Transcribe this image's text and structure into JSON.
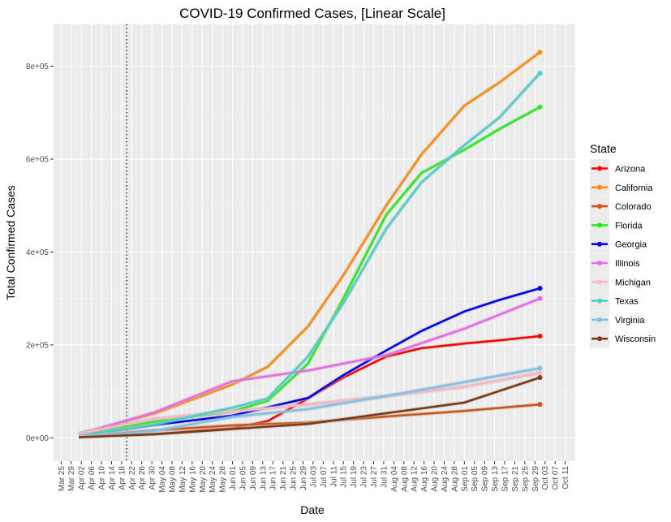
{
  "chart_data": {
    "type": "line",
    "title": "COVID-19 Confirmed Cases, [Linear Scale]",
    "xlabel": "Date",
    "ylabel": "Total Confirmed Cases",
    "xlim": [
      "2020-03-22",
      "2020-10-15"
    ],
    "ylim": [
      -50000,
      890000
    ],
    "y_ticks": [
      0,
      200000,
      400000,
      600000,
      800000
    ],
    "y_tick_labels": [
      "0e+00",
      "2e+05",
      "4e+05",
      "6e+05",
      "8e+05"
    ],
    "x_tick_labels": [
      "Mar 25",
      "Mar 29",
      "Apr 02",
      "Apr 06",
      "Apr 10",
      "Apr 14",
      "Apr 18",
      "Apr 22",
      "Apr 26",
      "Apr 30",
      "May 04",
      "May 08",
      "May 12",
      "May 16",
      "May 20",
      "May 24",
      "May 28",
      "Jun 01",
      "Jun 05",
      "Jun 09",
      "Jun 13",
      "Jun 17",
      "Jun 21",
      "Jun 25",
      "Jun 29",
      "Jul 03",
      "Jul 07",
      "Jul 11",
      "Jul 15",
      "Jul 19",
      "Jul 23",
      "Jul 27",
      "Jul 31",
      "Aug 04",
      "Aug 08",
      "Aug 12",
      "Aug 16",
      "Aug 20",
      "Aug 24",
      "Aug 28",
      "Sep 01",
      "Sep 05",
      "Sep 09",
      "Sep 13",
      "Sep 17",
      "Sep 21",
      "Sep 25",
      "Sep 29",
      "Oct 03",
      "Oct 07",
      "Oct 11"
    ],
    "vline_date": "2020-04-20",
    "grid": true,
    "legend_title": "State",
    "legend_position": "right",
    "series": [
      {
        "name": "Arizona",
        "color": "#ff0000",
        "points": [
          [
            "2020-04-01",
            1400
          ],
          [
            "2020-05-01",
            8000
          ],
          [
            "2020-06-01",
            21000
          ],
          [
            "2020-06-15",
            36000
          ],
          [
            "2020-07-01",
            85000
          ],
          [
            "2020-07-15",
            130000
          ],
          [
            "2020-08-01",
            175000
          ],
          [
            "2020-08-15",
            193000
          ],
          [
            "2020-09-01",
            203000
          ],
          [
            "2020-09-15",
            210000
          ],
          [
            "2020-10-01",
            219000
          ]
        ]
      },
      {
        "name": "California",
        "color": "#ff8c00",
        "points": [
          [
            "2020-04-01",
            9000
          ],
          [
            "2020-05-01",
            52000
          ],
          [
            "2020-06-01",
            115000
          ],
          [
            "2020-06-15",
            153000
          ],
          [
            "2020-07-01",
            240000
          ],
          [
            "2020-07-15",
            350000
          ],
          [
            "2020-08-01",
            500000
          ],
          [
            "2020-08-15",
            610000
          ],
          [
            "2020-09-01",
            715000
          ],
          [
            "2020-09-15",
            765000
          ],
          [
            "2020-10-01",
            830000
          ]
        ]
      },
      {
        "name": "Colorado",
        "color": "#cd5518",
        "points": [
          [
            "2020-04-01",
            3000
          ],
          [
            "2020-05-01",
            16000
          ],
          [
            "2020-06-01",
            27000
          ],
          [
            "2020-07-01",
            33000
          ],
          [
            "2020-08-01",
            46000
          ],
          [
            "2020-09-01",
            58000
          ],
          [
            "2020-10-01",
            72000
          ]
        ]
      },
      {
        "name": "Florida",
        "color": "#22ee11",
        "points": [
          [
            "2020-04-01",
            7000
          ],
          [
            "2020-05-01",
            35000
          ],
          [
            "2020-06-01",
            57000
          ],
          [
            "2020-06-15",
            80000
          ],
          [
            "2020-07-01",
            160000
          ],
          [
            "2020-07-15",
            300000
          ],
          [
            "2020-08-01",
            480000
          ],
          [
            "2020-08-15",
            570000
          ],
          [
            "2020-09-01",
            620000
          ],
          [
            "2020-09-15",
            665000
          ],
          [
            "2020-10-01",
            712000
          ]
        ]
      },
      {
        "name": "Georgia",
        "color": "#0000ee",
        "points": [
          [
            "2020-04-01",
            4600
          ],
          [
            "2020-05-01",
            28000
          ],
          [
            "2020-06-01",
            48000
          ],
          [
            "2020-07-01",
            86000
          ],
          [
            "2020-07-15",
            135000
          ],
          [
            "2020-08-01",
            188000
          ],
          [
            "2020-08-15",
            230000
          ],
          [
            "2020-09-01",
            272000
          ],
          [
            "2020-09-15",
            297000
          ],
          [
            "2020-10-01",
            322000
          ]
        ]
      },
      {
        "name": "Illinois",
        "color": "#ee66ee",
        "points": [
          [
            "2020-04-01",
            7000
          ],
          [
            "2020-05-01",
            55000
          ],
          [
            "2020-06-01",
            122000
          ],
          [
            "2020-07-01",
            145000
          ],
          [
            "2020-08-01",
            178000
          ],
          [
            "2020-09-01",
            235000
          ],
          [
            "2020-10-01",
            300000
          ]
        ]
      },
      {
        "name": "Michigan",
        "color": "#ffb6c1",
        "points": [
          [
            "2020-04-01",
            9300
          ],
          [
            "2020-05-01",
            41000
          ],
          [
            "2020-06-01",
            57000
          ],
          [
            "2020-07-01",
            72000
          ],
          [
            "2020-08-01",
            90000
          ],
          [
            "2020-09-01",
            110000
          ],
          [
            "2020-10-01",
            140000
          ]
        ]
      },
      {
        "name": "Texas",
        "color": "#48d1cc",
        "points": [
          [
            "2020-04-01",
            3800
          ],
          [
            "2020-05-01",
            29000
          ],
          [
            "2020-06-01",
            65000
          ],
          [
            "2020-06-15",
            85000
          ],
          [
            "2020-07-01",
            175000
          ],
          [
            "2020-07-15",
            290000
          ],
          [
            "2020-08-01",
            450000
          ],
          [
            "2020-08-15",
            550000
          ],
          [
            "2020-09-01",
            630000
          ],
          [
            "2020-09-15",
            690000
          ],
          [
            "2020-10-01",
            785000
          ]
        ]
      },
      {
        "name": "Virginia",
        "color": "#7ec0ee",
        "points": [
          [
            "2020-04-01",
            1500
          ],
          [
            "2020-05-01",
            15000
          ],
          [
            "2020-06-01",
            45000
          ],
          [
            "2020-07-01",
            62000
          ],
          [
            "2020-08-01",
            90000
          ],
          [
            "2020-09-01",
            120000
          ],
          [
            "2020-10-01",
            150000
          ]
        ]
      },
      {
        "name": "Wisconsin",
        "color": "#7a3b14",
        "points": [
          [
            "2020-04-01",
            1500
          ],
          [
            "2020-05-01",
            7900
          ],
          [
            "2020-06-01",
            19000
          ],
          [
            "2020-07-01",
            30000
          ],
          [
            "2020-08-01",
            53000
          ],
          [
            "2020-09-01",
            76000
          ],
          [
            "2020-10-01",
            130000
          ]
        ]
      }
    ]
  }
}
